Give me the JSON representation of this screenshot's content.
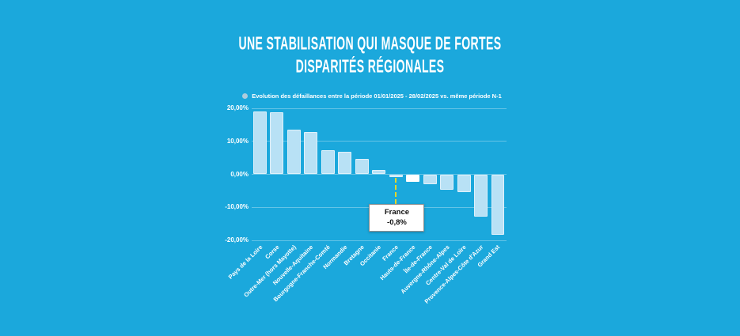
{
  "title": {
    "line1": "UNE STABILISATION QUI MASQUE DE FORTES",
    "line2": "DISPARITÉS RÉGIONALES"
  },
  "legend": {
    "label": "Evolution des défaillances entre la période 01/01/2025 - 28/02/2025 vs. même période N-1"
  },
  "callout": {
    "region": "France",
    "value": "-0,8%"
  },
  "colors": {
    "background": "#1BA8DC",
    "bar": "#B8E1F5",
    "highlight_bar": "#FFFFFF",
    "dashed_line": "#E4D72B",
    "text": "#FFFFFF",
    "callout_text": "#111111"
  },
  "chart_data": {
    "type": "bar",
    "title": "UNE STABILISATION QUI MASQUE DE FORTES DISPARITÉS RÉGIONALES",
    "legend_label": "Evolution des défaillances entre la période 01/01/2025 - 28/02/2025 vs. même période N-1",
    "categories": [
      "Pays de la Loire",
      "Corse",
      "Outre-Mer (hors Mayotte)",
      "Nouvelle-Aquitaine",
      "Bourgogne-Franche-Comté",
      "Normandie",
      "Bretagne",
      "Occitanie",
      "France",
      "Hauts-de-France",
      "Île-de-France",
      "Auvergne-Rhône-Alpes",
      "Centre-Val de Loire",
      "Provence-Alpes-Côte d'Azur",
      "Grand Est"
    ],
    "values": [
      19.0,
      18.7,
      13.5,
      12.8,
      7.2,
      6.8,
      4.7,
      1.4,
      -0.8,
      -2.2,
      -3.0,
      -4.6,
      -5.5,
      -12.7,
      -18.3
    ],
    "unit": "%",
    "ylim": [
      -20,
      20
    ],
    "yticks": [
      "20,00%",
      "10,00%",
      "0,00%",
      "-10,00%",
      "-20,00%"
    ],
    "grid": true,
    "legend_position": "top",
    "bar_color": "#B8E1F5",
    "highlight_index": 9,
    "highlight_color": "#FFFFFF",
    "annotation": {
      "index": 8,
      "label": "France",
      "value": "-0,8%"
    }
  }
}
